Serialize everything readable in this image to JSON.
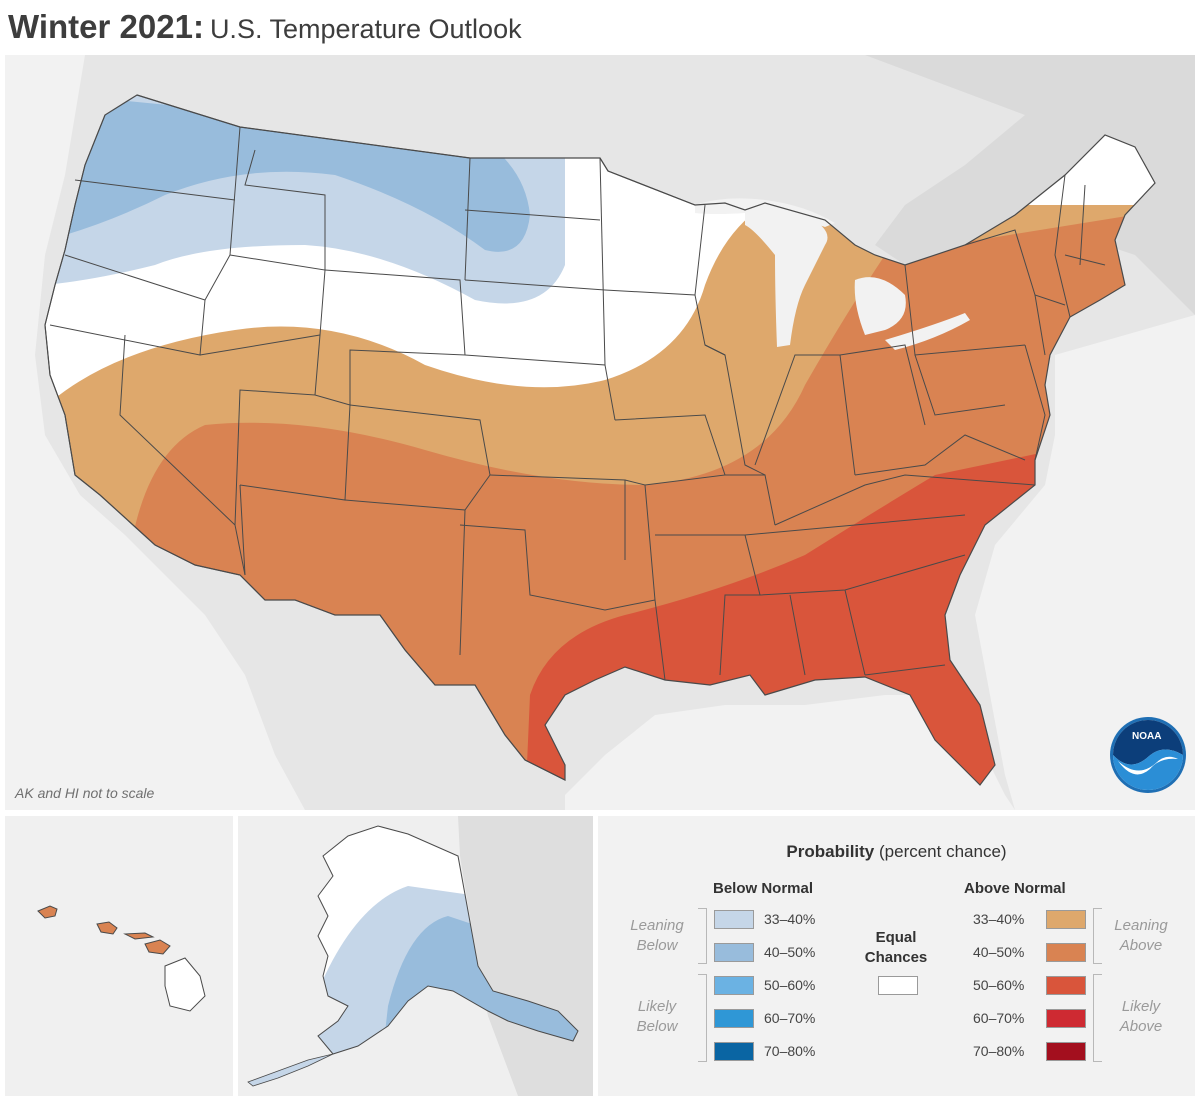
{
  "header": {
    "title_bold": "Winter 2021:",
    "title_rest": "U.S. Temperature Outlook"
  },
  "map": {
    "note": "AK and HI not to scale",
    "logo_text": "NOAA",
    "regions": [
      {
        "name": "Pacific Northwest and Northern Plains",
        "category": "Below Normal 33-40% / 40-50%"
      },
      {
        "name": "Southern tier, Southwest and Mid-Atlantic",
        "category": "Above Normal 40-50%"
      },
      {
        "name": "Gulf Coast and Southeast",
        "category": "Above Normal 50-60%"
      },
      {
        "name": "Central Plains, Great Lakes",
        "category": "Above Normal 33-40%"
      },
      {
        "name": "Hawaii",
        "category": "Above Normal 40-50%"
      },
      {
        "name": "Southeast Alaska",
        "category": "Below Normal 40-50%"
      }
    ]
  },
  "legend": {
    "title_bold": "Probability",
    "title_rest": "(percent chance)",
    "below": {
      "heading": "Below Normal",
      "items": [
        {
          "label": "33–40%",
          "color": "#c5d6e8"
        },
        {
          "label": "40–50%",
          "color": "#98bcdc"
        },
        {
          "label": "50–60%",
          "color": "#6bb2e3"
        },
        {
          "label": "60–70%",
          "color": "#2f97d6"
        },
        {
          "label": "70–80%",
          "color": "#0a65a3"
        }
      ],
      "leaning": "Leaning Below",
      "likely": "Likely Below"
    },
    "equal": {
      "label": "Equal Chances",
      "color": "#ffffff"
    },
    "above": {
      "heading": "Above Normal",
      "items": [
        {
          "label": "33–40%",
          "color": "#dea86c"
        },
        {
          "label": "40–50%",
          "color": "#d98352"
        },
        {
          "label": "50–60%",
          "color": "#d9553b"
        },
        {
          "label": "60–70%",
          "color": "#ce2a32"
        },
        {
          "label": "70–80%",
          "color": "#a30f1e"
        }
      ],
      "leaning": "Leaning Above",
      "likely": "Likely Above"
    }
  }
}
